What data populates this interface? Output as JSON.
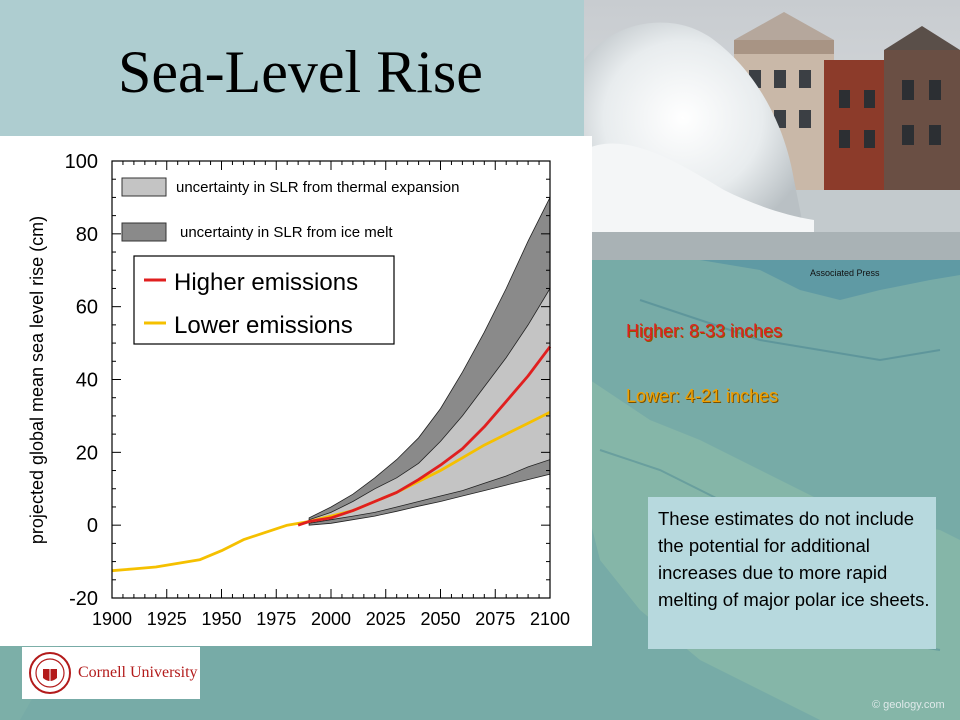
{
  "slide": {
    "title": "Sea-Level Rise",
    "photo_credit": "Associated Press",
    "higher_range": "Higher: 8-33 inches",
    "lower_range": "Lower: 4-21 inches",
    "note": "These estimates do not include the potential for additional increases due to more rapid melting of major polar ice sheets.",
    "logo_text": "Cornell University",
    "copyright": "© geology.com"
  },
  "colors": {
    "higher": "#e01f1f",
    "lower": "#f5c000",
    "thermal_band": "#c4c4c4",
    "ice_band": "#8a8a8a"
  },
  "chart_data": {
    "type": "area",
    "title": "",
    "xlabel": "",
    "ylabel": "projected global mean sea level rise (cm)",
    "xlim": [
      1900,
      2100
    ],
    "ylim": [
      -20,
      100
    ],
    "x_ticks": [
      1900,
      1925,
      1950,
      1975,
      2000,
      2025,
      2050,
      2075,
      2100
    ],
    "y_ticks": [
      -20,
      0,
      20,
      40,
      60,
      80,
      100
    ],
    "x_tick_labels": [
      "1900",
      "1925",
      "1950",
      "1975",
      "2000",
      "2025",
      "2050",
      "2075",
      "2100"
    ],
    "y_tick_labels": [
      "-20",
      "0",
      "20",
      "40",
      "60",
      "80",
      "100"
    ],
    "grid": false,
    "legend": {
      "bands": [
        {
          "label": "uncertainty in SLR from thermal expansion",
          "color": "#c4c4c4"
        },
        {
          "label": "uncertainty in SLR from ice melt",
          "color": "#8a8a8a"
        }
      ],
      "lines": [
        {
          "label": "Higher emissions",
          "color": "#e01f1f"
        },
        {
          "label": "Lower emissions",
          "color": "#f5c000"
        }
      ]
    },
    "bands": [
      {
        "name": "uncertainty in SLR from ice melt",
        "x": [
          1990,
          2000,
          2010,
          2020,
          2030,
          2040,
          2050,
          2060,
          2070,
          2080,
          2090,
          2100
        ],
        "lower": [
          0,
          0.5,
          1.5,
          2.5,
          3.8,
          5.2,
          6.5,
          8,
          9.5,
          11,
          12.5,
          14
        ],
        "upper": [
          2,
          5,
          8.5,
          13,
          18,
          24,
          32,
          42,
          53,
          65,
          78,
          90
        ]
      },
      {
        "name": "uncertainty in SLR from thermal expansion",
        "x": [
          1990,
          2000,
          2010,
          2020,
          2030,
          2040,
          2050,
          2060,
          2070,
          2080,
          2090,
          2100
        ],
        "lower": [
          0.5,
          1.5,
          2.5,
          3.5,
          5,
          6.5,
          8,
          9.5,
          11.5,
          13.5,
          16,
          18
        ],
        "upper": [
          1.5,
          3.5,
          6.5,
          10,
          13,
          17,
          23,
          30,
          38,
          46,
          55,
          65
        ]
      }
    ],
    "series": [
      {
        "name": "Higher emissions",
        "x": [
          1985,
          1990,
          2000,
          2010,
          2020,
          2030,
          2040,
          2050,
          2060,
          2070,
          2080,
          2090,
          2100
        ],
        "values": [
          0,
          1,
          2,
          4,
          6.5,
          9,
          12.5,
          16.5,
          21,
          27,
          34,
          41,
          49
        ]
      },
      {
        "name": "Lower emissions",
        "x": [
          1900,
          1910,
          1920,
          1930,
          1940,
          1950,
          1960,
          1970,
          1980,
          1990,
          2000,
          2010,
          2020,
          2030,
          2040,
          2050,
          2060,
          2070,
          2080,
          2090,
          2100
        ],
        "values": [
          -12.5,
          -12,
          -11.5,
          -10.5,
          -9.5,
          -7,
          -4,
          -2,
          0,
          1,
          2.5,
          4,
          6.5,
          9,
          12,
          15,
          18.5,
          22,
          25,
          28,
          31
        ]
      }
    ]
  }
}
